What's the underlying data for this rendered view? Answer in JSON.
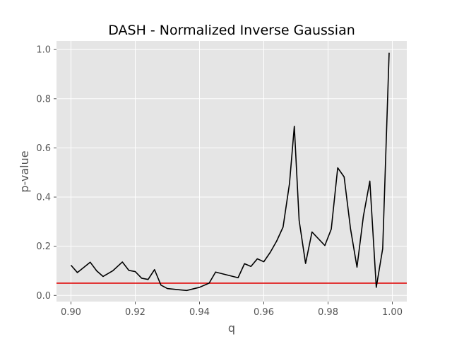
{
  "chart_data": {
    "type": "line",
    "title": "DASH - Normalized Inverse Gaussian",
    "xlabel": "q",
    "ylabel": "p-value",
    "xlim": [
      0.8955,
      1.0045
    ],
    "ylim": [
      -0.025,
      1.035
    ],
    "xticks": [
      0.9,
      0.92,
      0.94,
      0.96,
      0.98,
      1.0
    ],
    "xtick_labels": [
      "0.90",
      "0.92",
      "0.94",
      "0.96",
      "0.98",
      "1.00"
    ],
    "yticks": [
      0.0,
      0.2,
      0.4,
      0.6,
      0.8,
      1.0
    ],
    "ytick_labels": [
      "0.0",
      "0.2",
      "0.4",
      "0.6",
      "0.8",
      "1.0"
    ],
    "grid": true,
    "style": "ggplot",
    "series": [
      {
        "color": "#000000",
        "x": [
          0.9,
          0.902,
          0.906,
          0.908,
          0.91,
          0.913,
          0.916,
          0.918,
          0.92,
          0.922,
          0.924,
          0.926,
          0.928,
          0.93,
          0.936,
          0.94,
          0.943,
          0.945,
          0.952,
          0.954,
          0.956,
          0.958,
          0.96,
          0.962,
          0.964,
          0.966,
          0.968,
          0.9695,
          0.971,
          0.973,
          0.975,
          0.979,
          0.981,
          0.983,
          0.985,
          0.987,
          0.989,
          0.991,
          0.993,
          0.995,
          0.997,
          0.999
        ],
        "y": [
          0.123,
          0.093,
          0.135,
          0.1,
          0.077,
          0.1,
          0.136,
          0.102,
          0.097,
          0.07,
          0.065,
          0.105,
          0.042,
          0.028,
          0.02,
          0.033,
          0.05,
          0.095,
          0.072,
          0.129,
          0.118,
          0.149,
          0.137,
          0.175,
          0.221,
          0.278,
          0.455,
          0.688,
          0.305,
          0.13,
          0.258,
          0.203,
          0.27,
          0.519,
          0.482,
          0.27,
          0.115,
          0.323,
          0.465,
          0.033,
          0.19,
          0.987
        ]
      }
    ],
    "reference_lines": [
      {
        "orientation": "horizontal",
        "y": 0.05,
        "color": "#e00000"
      }
    ]
  }
}
